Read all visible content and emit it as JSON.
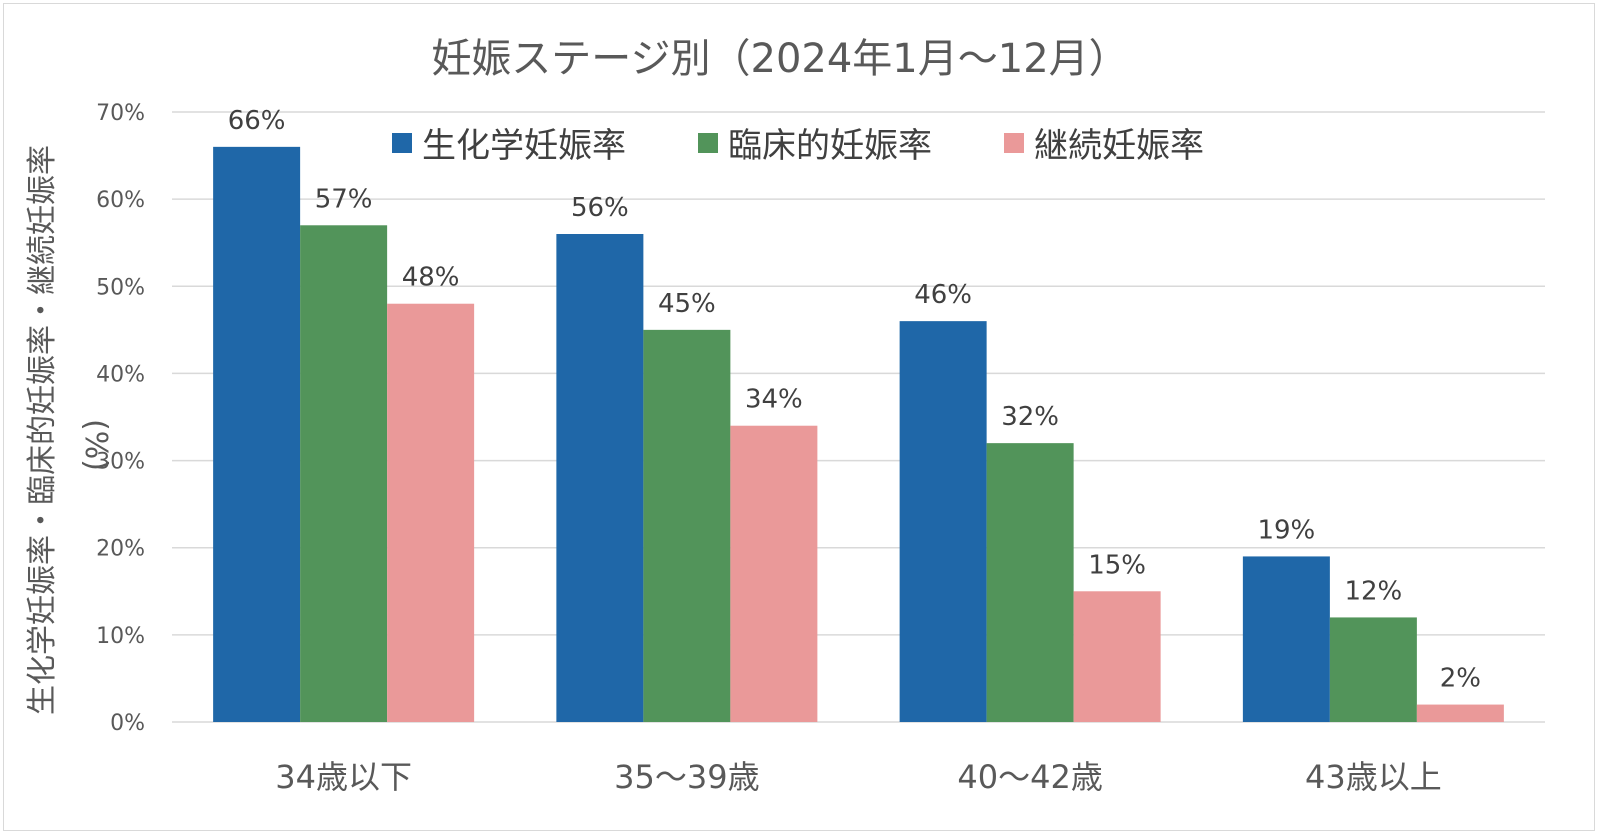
{
  "chart_data": {
    "type": "bar",
    "title": "妊娠ステージ別（2024年1月～12月）",
    "ylabel": "生化学妊娠率・臨床的妊娠率・継続妊娠率",
    "yunit": "(%)",
    "ylim": [
      0,
      70
    ],
    "yticks": [
      0,
      10,
      20,
      30,
      40,
      50,
      60,
      70
    ],
    "ytick_labels": [
      "0%",
      "10%",
      "20%",
      "30%",
      "40%",
      "50%",
      "60%",
      "70%"
    ],
    "grid": true,
    "legend_position": "top",
    "categories": [
      "34歳以下",
      "35～39歳",
      "40～42歳",
      "43歳以上"
    ],
    "series": [
      {
        "name": "生化学妊娠率",
        "color": "#1f67a8",
        "values": [
          66,
          56,
          46,
          19
        ],
        "labels": [
          "66%",
          "56%",
          "46%",
          "19%"
        ]
      },
      {
        "name": "臨床的妊娠率",
        "color": "#52945a",
        "values": [
          57,
          45,
          32,
          12
        ],
        "labels": [
          "57%",
          "45%",
          "32%",
          "12%"
        ]
      },
      {
        "name": "継続妊娠率",
        "color": "#ea9999",
        "values": [
          48,
          34,
          15,
          2
        ],
        "labels": [
          "48%",
          "34%",
          "15%",
          "2%"
        ]
      }
    ]
  }
}
